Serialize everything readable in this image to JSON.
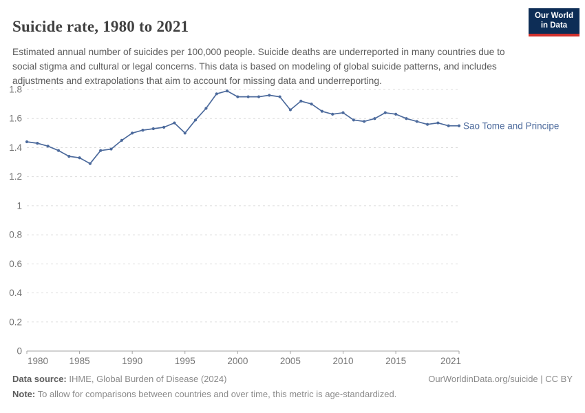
{
  "header": {
    "title": "Suicide rate, 1980 to 2021",
    "subtitle": "Estimated annual number of suicides per 100,000 people. Suicide deaths are underreported in many countries due to social stigma and cultural or legal concerns. This data is based on modeling of global suicide patterns, and includes adjustments and extrapolations that aim to account for missing data and underreporting.",
    "logo": {
      "line1": "Our World",
      "line2": "in Data",
      "bg_color": "#0d2d56",
      "accent_color": "#d0312d"
    }
  },
  "chart_data": {
    "type": "line",
    "title": "Suicide rate, 1980 to 2021",
    "xlabel": "",
    "ylabel": "",
    "xlim": [
      1980,
      2021
    ],
    "ylim": [
      0,
      1.8
    ],
    "x_ticks": [
      1980,
      1985,
      1990,
      1995,
      2000,
      2005,
      2010,
      2015,
      2021
    ],
    "y_ticks": [
      0,
      0.2,
      0.4,
      0.6,
      0.8,
      1,
      1.2,
      1.4,
      1.6,
      1.8
    ],
    "grid": "horizontal dashed",
    "legend_position": "end-of-line label",
    "x": [
      1980,
      1981,
      1982,
      1983,
      1984,
      1985,
      1986,
      1987,
      1988,
      1989,
      1990,
      1991,
      1992,
      1993,
      1994,
      1995,
      1996,
      1997,
      1998,
      1999,
      2000,
      2001,
      2002,
      2003,
      2004,
      2005,
      2006,
      2007,
      2008,
      2009,
      2010,
      2011,
      2012,
      2013,
      2014,
      2015,
      2016,
      2017,
      2018,
      2019,
      2020,
      2021
    ],
    "series": [
      {
        "name": "Sao Tome and Principe",
        "color": "#4C6A9C",
        "values": [
          1.44,
          1.43,
          1.41,
          1.38,
          1.34,
          1.33,
          1.29,
          1.38,
          1.39,
          1.45,
          1.5,
          1.52,
          1.53,
          1.54,
          1.57,
          1.5,
          1.59,
          1.67,
          1.77,
          1.79,
          1.75,
          1.75,
          1.75,
          1.76,
          1.75,
          1.66,
          1.72,
          1.7,
          1.65,
          1.63,
          1.64,
          1.59,
          1.58,
          1.6,
          1.64,
          1.63,
          1.6,
          1.58,
          1.56,
          1.57,
          1.55,
          1.55
        ]
      }
    ]
  },
  "footer": {
    "source_label": "Data source:",
    "source_text": " IHME, Global Burden of Disease (2024)",
    "license_text": "OurWorldinData.org/suicide | CC BY",
    "note_label": "Note:",
    "note_text": " To allow for comparisons between countries and over time, this metric is age-standardized."
  }
}
